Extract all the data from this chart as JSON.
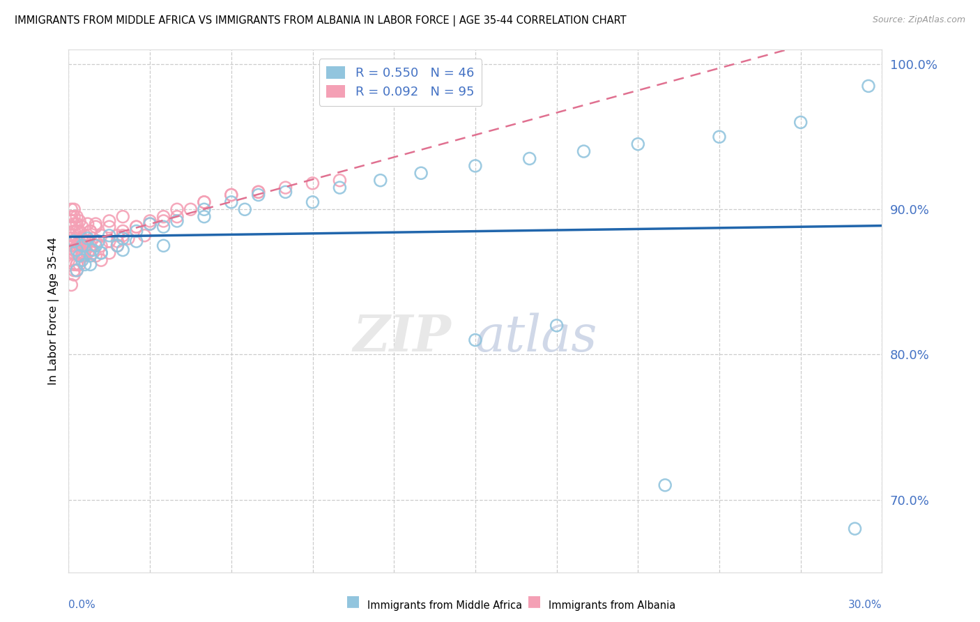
{
  "title": "IMMIGRANTS FROM MIDDLE AFRICA VS IMMIGRANTS FROM ALBANIA IN LABOR FORCE | AGE 35-44 CORRELATION CHART",
  "source": "Source: ZipAtlas.com",
  "ylabel": "In Labor Force | Age 35-44",
  "blue_label": "Immigrants from Middle Africa",
  "pink_label": "Immigrants from Albania",
  "blue_R": 0.55,
  "blue_N": 46,
  "pink_R": 0.092,
  "pink_N": 95,
  "watermark_zip": "ZIP",
  "watermark_atlas": "atlas",
  "blue_color": "#92c5de",
  "pink_color": "#f4a0b5",
  "blue_line_color": "#2166ac",
  "pink_line_color": "#e07090",
  "xmin": 0.0,
  "xmax": 0.3,
  "ymin": 0.65,
  "ymax": 1.01,
  "y_ticks": [
    0.7,
    0.8,
    0.9,
    1.0
  ],
  "y_tick_labels": [
    "70.0%",
    "80.0%",
    "90.0%",
    "100.0%"
  ],
  "blue_x": [
    0.002,
    0.003,
    0.004,
    0.005,
    0.006,
    0.007,
    0.008,
    0.009,
    0.01,
    0.011,
    0.012,
    0.015,
    0.018,
    0.02,
    0.025,
    0.03,
    0.035,
    0.04,
    0.05,
    0.06,
    0.07,
    0.08,
    0.09,
    0.1,
    0.115,
    0.13,
    0.15,
    0.17,
    0.19,
    0.21,
    0.24,
    0.27,
    0.295,
    0.003,
    0.005,
    0.008,
    0.012,
    0.02,
    0.025,
    0.035,
    0.05,
    0.065,
    0.15,
    0.18,
    0.22,
    0.29
  ],
  "blue_y": [
    0.878,
    0.872,
    0.868,
    0.875,
    0.862,
    0.88,
    0.868,
    0.872,
    0.875,
    0.878,
    0.87,
    0.882,
    0.875,
    0.88,
    0.885,
    0.89,
    0.888,
    0.892,
    0.9,
    0.905,
    0.91,
    0.912,
    0.905,
    0.915,
    0.92,
    0.925,
    0.93,
    0.935,
    0.94,
    0.945,
    0.95,
    0.96,
    0.985,
    0.858,
    0.865,
    0.862,
    0.87,
    0.872,
    0.878,
    0.875,
    0.895,
    0.9,
    0.81,
    0.82,
    0.71,
    0.68
  ],
  "pink_x": [
    0.001,
    0.001,
    0.001,
    0.001,
    0.001,
    0.001,
    0.001,
    0.001,
    0.001,
    0.001,
    0.002,
    0.002,
    0.002,
    0.002,
    0.002,
    0.002,
    0.002,
    0.002,
    0.002,
    0.003,
    0.003,
    0.003,
    0.003,
    0.003,
    0.003,
    0.003,
    0.004,
    0.004,
    0.004,
    0.004,
    0.004,
    0.005,
    0.005,
    0.005,
    0.005,
    0.006,
    0.006,
    0.006,
    0.007,
    0.007,
    0.007,
    0.008,
    0.008,
    0.009,
    0.009,
    0.01,
    0.01,
    0.01,
    0.012,
    0.012,
    0.015,
    0.015,
    0.018,
    0.018,
    0.02,
    0.022,
    0.025,
    0.028,
    0.03,
    0.035,
    0.04,
    0.045,
    0.05,
    0.06,
    0.07,
    0.08,
    0.09,
    0.1,
    0.002,
    0.003,
    0.005,
    0.008,
    0.01,
    0.012,
    0.015,
    0.018,
    0.02,
    0.025,
    0.03,
    0.035,
    0.04,
    0.05,
    0.06,
    0.07,
    0.001,
    0.002,
    0.003,
    0.004,
    0.005,
    0.006,
    0.007,
    0.008,
    0.01,
    0.015,
    0.02
  ],
  "pink_y": [
    0.88,
    0.888,
    0.892,
    0.875,
    0.87,
    0.895,
    0.865,
    0.9,
    0.878,
    0.882,
    0.875,
    0.89,
    0.87,
    0.885,
    0.895,
    0.878,
    0.862,
    0.9,
    0.872,
    0.88,
    0.895,
    0.87,
    0.885,
    0.875,
    0.862,
    0.89,
    0.878,
    0.892,
    0.87,
    0.885,
    0.875,
    0.88,
    0.87,
    0.888,
    0.875,
    0.882,
    0.875,
    0.868,
    0.878,
    0.89,
    0.87,
    0.875,
    0.885,
    0.87,
    0.88,
    0.878,
    0.89,
    0.868,
    0.882,
    0.875,
    0.878,
    0.888,
    0.882,
    0.875,
    0.885,
    0.88,
    0.888,
    0.882,
    0.89,
    0.892,
    0.895,
    0.9,
    0.905,
    0.91,
    0.912,
    0.915,
    0.918,
    0.92,
    0.858,
    0.862,
    0.868,
    0.872,
    0.875,
    0.865,
    0.87,
    0.878,
    0.882,
    0.888,
    0.892,
    0.895,
    0.9,
    0.905,
    0.91,
    0.912,
    0.848,
    0.855,
    0.858,
    0.862,
    0.868,
    0.872,
    0.878,
    0.885,
    0.888,
    0.892,
    0.895
  ]
}
